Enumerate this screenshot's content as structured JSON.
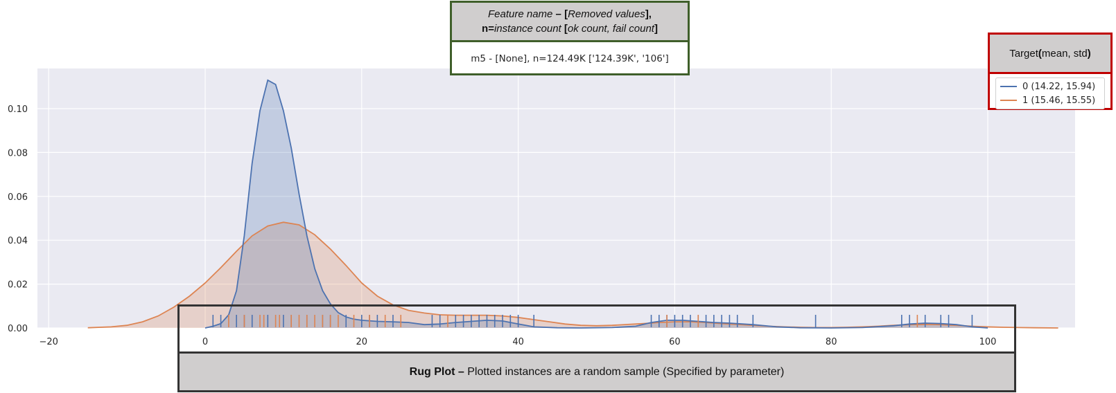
{
  "chart_data": {
    "type": "line",
    "subtype": "kde density with rug plot",
    "xlim": [
      -20,
      110
    ],
    "ylim": [
      0,
      0.118
    ],
    "x_ticks": [
      -20,
      0,
      20,
      40,
      60,
      80,
      100
    ],
    "y_ticks": [
      0.0,
      0.02,
      0.04,
      0.06,
      0.08,
      0.1
    ],
    "x_tick_labels": [
      "−20",
      "0",
      "20",
      "40",
      "60",
      "80",
      "100"
    ],
    "y_tick_labels": [
      "0.00",
      "0.02",
      "0.04",
      "0.06",
      "0.08",
      "0.10"
    ],
    "grid": true,
    "legend_position": "top-right",
    "series": [
      {
        "name": "0 (14.22, 15.94)",
        "color": "#4c72b0",
        "fill": true,
        "x": [
          0,
          1,
          2,
          3,
          4,
          5,
          6,
          7,
          8,
          9,
          10,
          11,
          12,
          13,
          14,
          15,
          16,
          17,
          18,
          19,
          20,
          22,
          24,
          26,
          28,
          30,
          32,
          34,
          36,
          38,
          40,
          42,
          45,
          48,
          52,
          55,
          57,
          59,
          61,
          63,
          65,
          67,
          70,
          73,
          76,
          80,
          84,
          88,
          90,
          92,
          94,
          96,
          98,
          100
        ],
        "y": [
          0.0,
          0.0008,
          0.002,
          0.006,
          0.017,
          0.042,
          0.075,
          0.099,
          0.113,
          0.111,
          0.099,
          0.082,
          0.061,
          0.042,
          0.027,
          0.017,
          0.011,
          0.007,
          0.005,
          0.004,
          0.0035,
          0.003,
          0.0028,
          0.0025,
          0.0015,
          0.0018,
          0.0025,
          0.003,
          0.0035,
          0.0032,
          0.0018,
          0.0005,
          0.0001,
          0.0,
          0.0002,
          0.0008,
          0.0025,
          0.0035,
          0.0035,
          0.003,
          0.0025,
          0.0022,
          0.0015,
          0.0005,
          0.0001,
          0.0,
          0.0002,
          0.001,
          0.0018,
          0.0022,
          0.002,
          0.0015,
          0.0005,
          0.0
        ]
      },
      {
        "name": "1 (15.46, 15.55)",
        "color": "#dd8452",
        "fill": true,
        "x": [
          -15,
          -12,
          -10,
          -8,
          -6,
          -4,
          -2,
          0,
          2,
          4,
          6,
          8,
          10,
          12,
          14,
          16,
          18,
          20,
          22,
          24,
          26,
          28,
          30,
          32,
          34,
          36,
          38,
          40,
          42,
          44,
          46,
          48,
          50,
          52,
          54,
          56,
          58,
          60,
          62,
          64,
          66,
          68,
          70,
          72,
          74,
          76,
          78,
          80,
          82,
          84,
          86,
          88,
          90,
          92,
          94,
          96,
          98,
          100,
          102,
          104,
          106,
          109
        ],
        "y": [
          0.0001,
          0.0005,
          0.0012,
          0.0028,
          0.0055,
          0.0095,
          0.0145,
          0.0205,
          0.0275,
          0.035,
          0.042,
          0.0465,
          0.0482,
          0.047,
          0.0425,
          0.036,
          0.0285,
          0.0205,
          0.0145,
          0.0105,
          0.008,
          0.0068,
          0.006,
          0.0058,
          0.0058,
          0.0058,
          0.0055,
          0.0048,
          0.0038,
          0.0028,
          0.0018,
          0.0012,
          0.001,
          0.0012,
          0.0016,
          0.002,
          0.0025,
          0.0028,
          0.0028,
          0.0025,
          0.002,
          0.0016,
          0.0012,
          0.0008,
          0.0005,
          0.0003,
          0.0002,
          0.0002,
          0.0003,
          0.0005,
          0.0008,
          0.0012,
          0.0015,
          0.0016,
          0.0015,
          0.0012,
          0.0008,
          0.0005,
          0.0003,
          0.0002,
          0.0001,
          0.0
        ]
      }
    ],
    "rug": {
      "0": [
        1,
        2,
        4,
        5,
        6,
        8,
        10,
        11,
        13,
        15,
        16,
        18,
        20,
        21,
        22,
        24,
        29,
        30,
        32,
        33,
        34,
        35,
        36,
        37,
        38,
        39,
        40,
        42,
        57,
        58,
        59,
        60,
        61,
        62,
        63,
        64,
        65,
        66,
        67,
        68,
        70,
        78,
        89,
        90,
        92,
        94,
        95,
        98
      ],
      "1": [
        3,
        5,
        7,
        7.5,
        9,
        9.5,
        11,
        12,
        13,
        14,
        15,
        16,
        17,
        19,
        21,
        23,
        25,
        31,
        59,
        63,
        91
      ]
    }
  },
  "callout_top": {
    "header_line1_italic": "Feature name",
    "header_line1_sep": " – [",
    "header_line1_italic2": "Removed values",
    "header_line1_end": "],",
    "header_line2_bold": "n=",
    "header_line2_italic": "instance count",
    "header_line2_mid": " [",
    "header_line2_italic2": "ok count, fail count",
    "header_line2_end": "]",
    "body": "m5 - [None], n=124.49K ['124.39K', '106']"
  },
  "legend": {
    "title_a": "Target ",
    "title_b": "(",
    "title_c": "mean, std",
    "title_d": ")",
    "items": [
      {
        "label": "0 (14.22, 15.94)",
        "color": "#4c72b0"
      },
      {
        "label": "1 (15.46, 15.55)",
        "color": "#dd8452"
      }
    ]
  },
  "rug_caption": {
    "bold": "Rug Plot – ",
    "text": "Plotted instances are a random sample (Specified by parameter)"
  },
  "colors": {
    "axes_bg": "#eaeaf2",
    "grid": "#ffffff",
    "callout_green": "#3f5f2a",
    "callout_red": "#c00000",
    "callout_fill": "#d0cece"
  }
}
